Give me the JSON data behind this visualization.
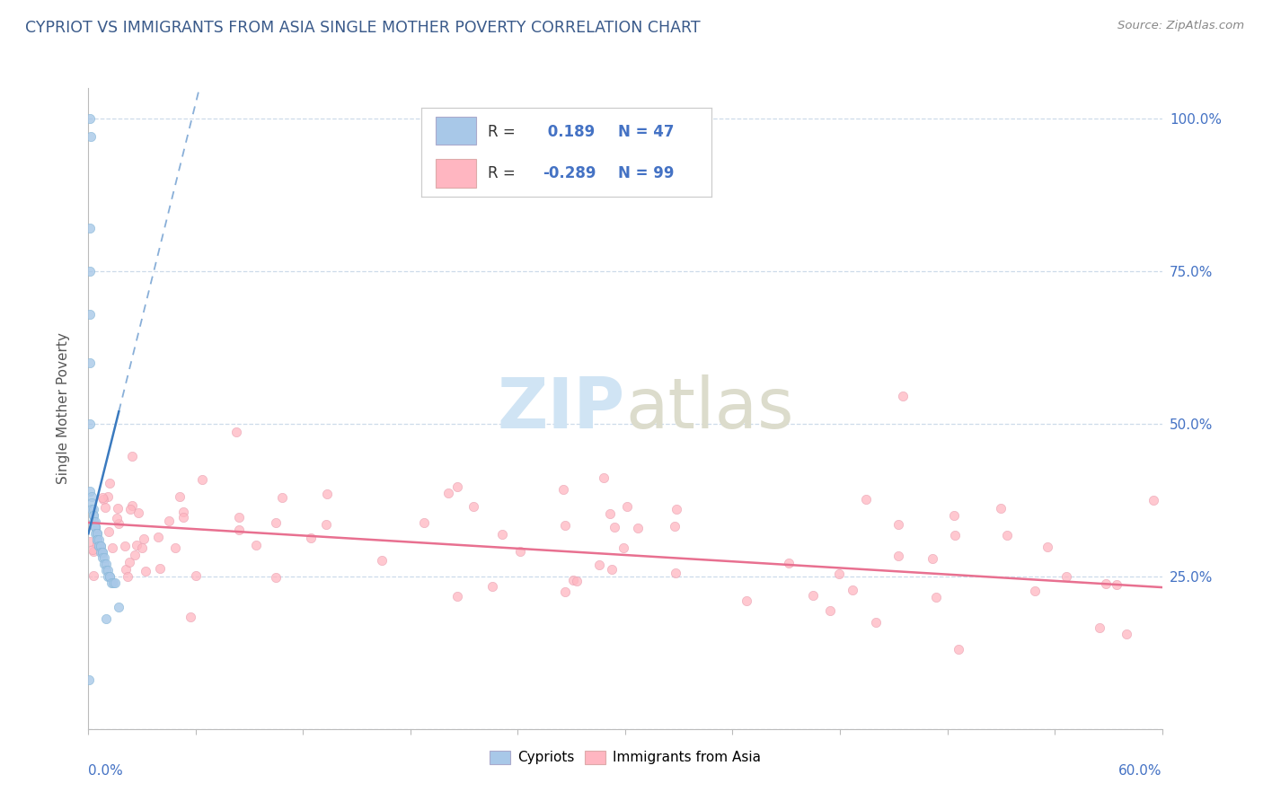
{
  "title": "CYPRIOT VS IMMIGRANTS FROM ASIA SINGLE MOTHER POVERTY CORRELATION CHART",
  "source": "Source: ZipAtlas.com",
  "ylabel": "Single Mother Poverty",
  "xmin": 0.0,
  "xmax": 0.6,
  "ymin": 0.0,
  "ymax": 1.05,
  "color_cypriot": "#a8c8e8",
  "color_immigrant": "#ffb6c1",
  "color_trend_cypriot": "#3a7abf",
  "color_trend_immigrant": "#e87090",
  "legend_R1": " 0.189",
  "legend_N1": "47",
  "legend_R2": "-0.289",
  "legend_N2": "99"
}
